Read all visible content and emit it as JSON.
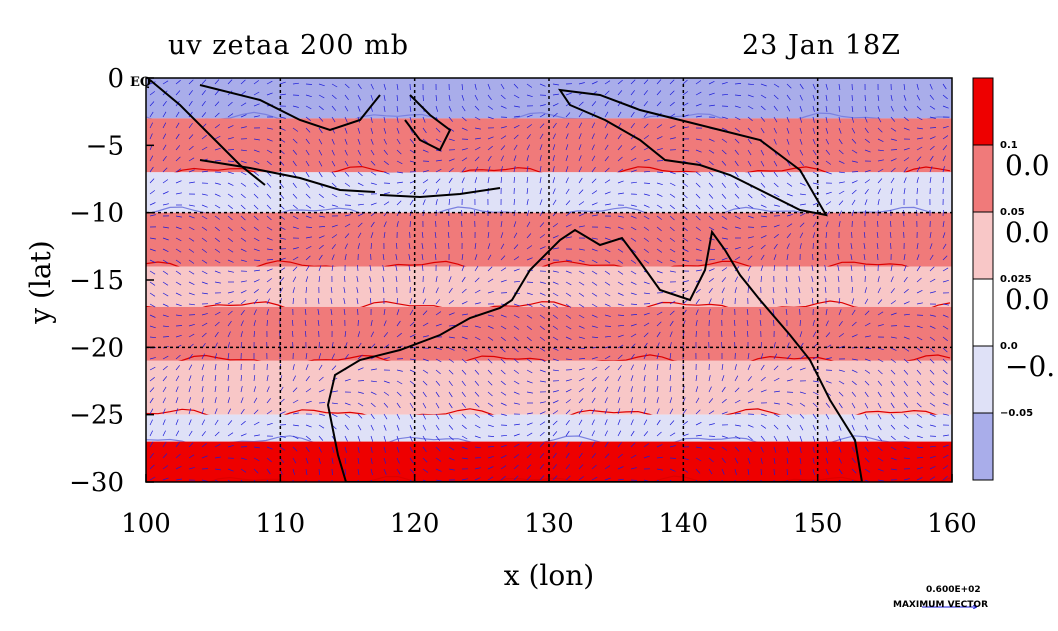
{
  "title_left": "uv zetaa 200 mb",
  "title_right": "23 Jan 18Z",
  "chart_data": {
    "type": "heatmap",
    "xlabel": "x (lon)",
    "ylabel": "y (lat)",
    "xlim": [
      100,
      160
    ],
    "ylim": [
      -30,
      0
    ],
    "xticks": [
      100,
      110,
      120,
      130,
      140,
      150,
      160
    ],
    "yticks": [
      0,
      -5,
      -10,
      -15,
      -20,
      -25,
      -30
    ],
    "ytick_labels": [
      "0",
      "−5",
      "−10",
      "−15",
      "−20",
      "−25",
      "−30"
    ],
    "grid": true,
    "eq_label": "EQ",
    "legend_placement": "right colorbar",
    "colorbar": {
      "levels": [
        {
          "color": "#ee0000",
          "label": "0.1",
          "side_label": "0.0"
        },
        {
          "color": "#f07a7a",
          "label": "0.05",
          "side_label": "0.0"
        },
        {
          "color": "#f8c7c7",
          "label": "0.025",
          "side_label": "0.0"
        },
        {
          "color": "#ffffff",
          "label": "0.0",
          "side_label": "−0."
        },
        {
          "color": "#dfe1f7",
          "label": "−0.05",
          "side_label": ""
        },
        {
          "color": "#a9adea",
          "label": "",
          "side_label": ""
        }
      ]
    },
    "field_bands": [
      {
        "lat_from": 0,
        "lat_to": -3,
        "value": -0.04
      },
      {
        "lat_from": -3,
        "lat_to": -7,
        "value": 0.04
      },
      {
        "lat_from": -7,
        "lat_to": -10,
        "value": -0.02
      },
      {
        "lat_from": -10,
        "lat_to": -14,
        "value": 0.05
      },
      {
        "lat_from": -14,
        "lat_to": -17,
        "value": 0.01
      },
      {
        "lat_from": -17,
        "lat_to": -21,
        "value": 0.06
      },
      {
        "lat_from": -21,
        "lat_to": -25,
        "value": 0.02
      },
      {
        "lat_from": -25,
        "lat_to": -27,
        "value": -0.02
      },
      {
        "lat_from": -27,
        "lat_to": -30,
        "value": 0.09
      }
    ],
    "max_vector": {
      "value": "0.600E+02",
      "label": "MAXIMUM  VECTOR"
    }
  },
  "colors": {
    "positive_strong": "#ee0000",
    "positive": "#f07a7a",
    "positive_weak": "#f8c7c7",
    "negative_weak": "#dfe1f7",
    "negative": "#a9adea",
    "vector": "#1a1ad8",
    "coast": "#000000"
  }
}
